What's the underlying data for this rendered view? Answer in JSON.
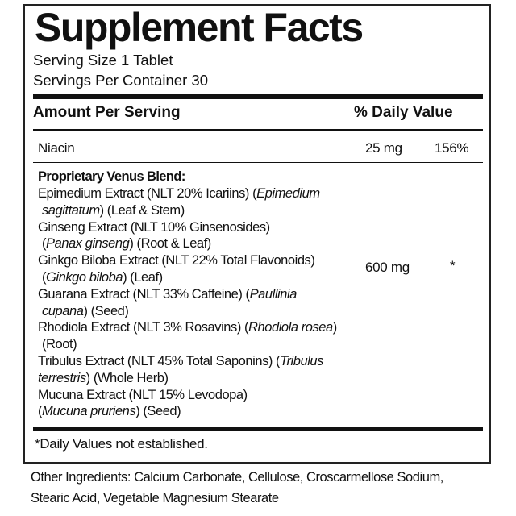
{
  "title": "Supplement Facts",
  "serving_size": "Serving Size 1 Tablet",
  "servings_per_container": "Servings Per Container 30",
  "header": {
    "amount": "Amount Per Serving",
    "dv": "% Daily Value"
  },
  "niacin": {
    "name": "Niacin",
    "amount": "25 mg",
    "dv": "156%"
  },
  "blend": {
    "name": "Proprietary Venus Blend:",
    "amount": "600 mg",
    "dv": "*",
    "lines": [
      {
        "indent": false,
        "segs": [
          [
            "Epimedium Extract (NLT 20% Icariins) (",
            false
          ],
          [
            "Epimedium",
            true
          ]
        ]
      },
      {
        "indent": true,
        "segs": [
          [
            "sagittatum",
            true
          ],
          [
            ") (Leaf & Stem)",
            false
          ]
        ]
      },
      {
        "indent": false,
        "segs": [
          [
            "Ginseng Extract (NLT 10% Ginsenosides)",
            false
          ]
        ]
      },
      {
        "indent": true,
        "segs": [
          [
            "(",
            false
          ],
          [
            "Panax ginseng",
            true
          ],
          [
            ") (Root & Leaf)",
            false
          ]
        ]
      },
      {
        "indent": false,
        "segs": [
          [
            "Ginkgo Biloba Extract (NLT 22% Total Flavonoids)",
            false
          ]
        ]
      },
      {
        "indent": true,
        "segs": [
          [
            "(",
            false
          ],
          [
            "Ginkgo biloba",
            true
          ],
          [
            ") (Leaf)",
            false
          ]
        ]
      },
      {
        "indent": false,
        "segs": [
          [
            "Guarana Extract (NLT 33% Caffeine) (",
            false
          ],
          [
            "Paullinia",
            true
          ]
        ]
      },
      {
        "indent": true,
        "segs": [
          [
            "cupana",
            true
          ],
          [
            ") (Seed)",
            false
          ]
        ]
      },
      {
        "indent": false,
        "segs": [
          [
            "Rhodiola Extract (NLT 3% Rosavins) (",
            false
          ],
          [
            "Rhodiola rosea",
            true
          ],
          [
            ")",
            false
          ]
        ]
      },
      {
        "indent": true,
        "segs": [
          [
            "(Root)",
            false
          ]
        ]
      },
      {
        "indent": false,
        "segs": [
          [
            "Tribulus Extract (NLT 45% Total Saponins) (",
            false
          ],
          [
            "Tribulus",
            true
          ]
        ]
      },
      {
        "indent": false,
        "segs": [
          [
            "terrestris",
            true
          ],
          [
            ") (Whole Herb)",
            false
          ]
        ]
      },
      {
        "indent": false,
        "segs": [
          [
            "Mucuna Extract (NLT 15% Levodopa)",
            false
          ]
        ]
      },
      {
        "indent": false,
        "segs": [
          [
            "(",
            false
          ],
          [
            "Mucuna pruriens",
            true
          ],
          [
            ") (Seed)",
            false
          ]
        ]
      }
    ]
  },
  "footnote": "*Daily Values not established.",
  "other_ingredients": {
    "line1": "Other Ingredients: Calcium Carbonate, Cellulose, Croscarmellose Sodium,",
    "line2": "Stearic Acid, Vegetable Magnesium Stearate"
  }
}
